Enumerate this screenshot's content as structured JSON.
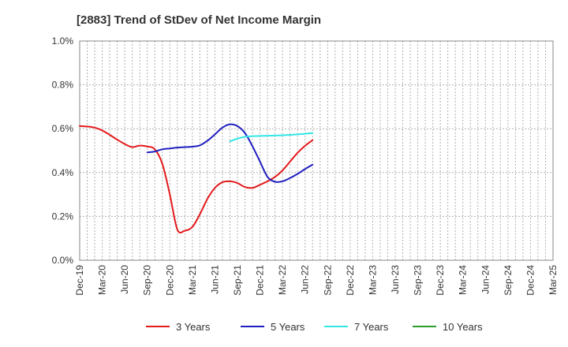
{
  "chart_data": {
    "type": "line",
    "title": "[2883]  Trend of StDev of Net Income Margin",
    "xlabel": "",
    "ylabel": "",
    "ylim": [
      0,
      1.0
    ],
    "yticks": [
      "0.0%",
      "0.2%",
      "0.4%",
      "0.6%",
      "0.8%",
      "1.0%"
    ],
    "x_tick_labels": [
      "Dec-19",
      "Mar-20",
      "Jun-20",
      "Sep-20",
      "Dec-20",
      "Mar-21",
      "Jun-21",
      "Sep-21",
      "Dec-21",
      "Mar-22",
      "Jun-22",
      "Sep-22",
      "Dec-22",
      "Mar-23",
      "Jun-23",
      "Sep-23",
      "Dec-23",
      "Mar-24",
      "Jun-24",
      "Sep-24",
      "Dec-24",
      "Mar-25"
    ],
    "grid": true,
    "legend_position": "bottom",
    "series": [
      {
        "name": "3 Years",
        "color": "#e31a1c",
        "values": [
          0.612,
          0.61,
          0.605,
          0.592,
          0.572,
          0.55,
          0.53,
          0.516,
          0.523,
          0.519,
          0.506,
          0.44,
          0.3,
          0.14,
          0.135,
          0.152,
          0.21,
          0.28,
          0.33,
          0.356,
          0.36,
          0.352,
          0.334,
          0.33,
          0.344,
          0.36,
          0.38,
          0.41,
          0.45,
          0.49,
          0.522,
          0.548
        ]
      },
      {
        "name": "5 Years",
        "color": "#1f1fbf",
        "values": [
          null,
          null,
          null,
          null,
          null,
          null,
          null,
          null,
          null,
          0.492,
          0.496,
          0.506,
          0.51,
          0.514,
          0.516,
          0.518,
          0.524,
          0.545,
          0.574,
          0.605,
          0.62,
          0.612,
          0.58,
          0.52,
          0.45,
          0.38,
          0.358,
          0.36,
          0.375,
          0.394,
          0.416,
          0.436
        ]
      },
      {
        "name": "7 Years",
        "color": "#33e6e6",
        "values": [
          null,
          null,
          null,
          null,
          null,
          null,
          null,
          null,
          null,
          null,
          null,
          null,
          null,
          null,
          null,
          null,
          null,
          null,
          null,
          null,
          0.542,
          0.555,
          0.563,
          0.566,
          0.567,
          0.568,
          0.569,
          0.57,
          0.572,
          0.574,
          0.577,
          0.58
        ]
      },
      {
        "name": "10 Years",
        "color": "#2a9d2a",
        "values": []
      }
    ]
  }
}
